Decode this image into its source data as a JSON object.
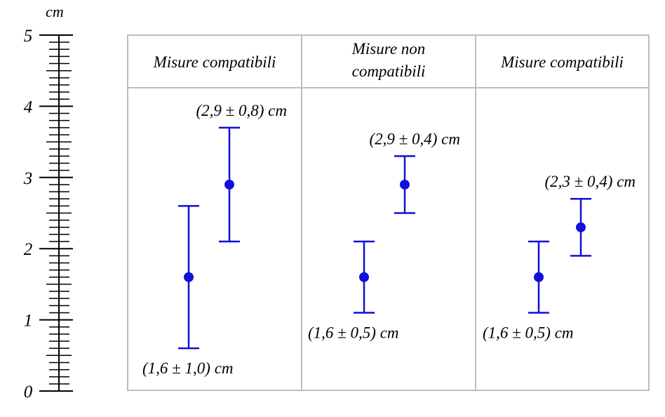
{
  "scale": {
    "unit": "cm",
    "min": 0,
    "max": 5,
    "major_labels": [
      "0",
      "1",
      "2",
      "3",
      "4",
      "5"
    ],
    "minor_divisions": 10
  },
  "panels": [
    {
      "header": [
        "Misure compatibili"
      ],
      "measurements": [
        {
          "value": 1.6,
          "error": 1.0,
          "label": "(1,6 ± 1,0) cm",
          "label_side": "below"
        },
        {
          "value": 2.9,
          "error": 0.8,
          "label": "(2,9 ± 0,8) cm",
          "label_side": "above"
        }
      ]
    },
    {
      "header": [
        "Misure non",
        "compatibili"
      ],
      "measurements": [
        {
          "value": 1.6,
          "error": 0.5,
          "label": "(1,6 ± 0,5) cm",
          "label_side": "below"
        },
        {
          "value": 2.9,
          "error": 0.4,
          "label": "(2,9 ± 0,4) cm",
          "label_side": "above"
        }
      ]
    },
    {
      "header": [
        "Misure compatibili"
      ],
      "measurements": [
        {
          "value": 1.6,
          "error": 0.5,
          "label": "(1,6 ± 0,5) cm",
          "label_side": "below"
        },
        {
          "value": 2.3,
          "error": 0.4,
          "label": "(2,3 ± 0,4) cm",
          "label_side": "above"
        }
      ]
    }
  ],
  "colors": {
    "errorbar": "#1010d8",
    "grid": "#bdbdbd",
    "ruler": "#000000"
  }
}
